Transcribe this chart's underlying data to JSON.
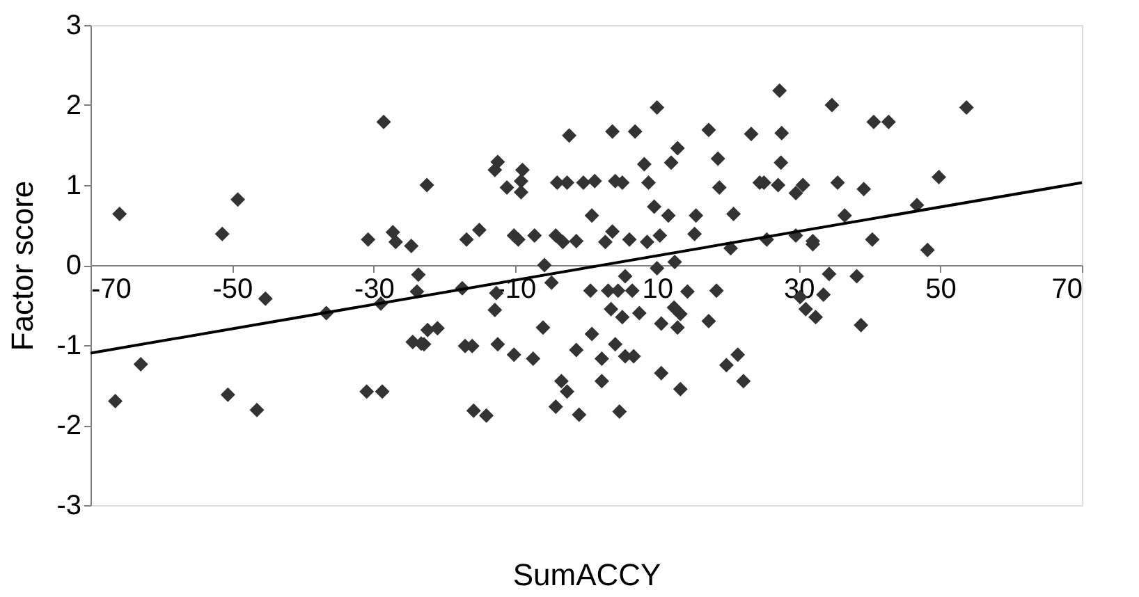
{
  "chart_data": {
    "type": "scatter",
    "xlabel": "SumACCY",
    "ylabel": "Factor score",
    "xlim": [
      -70,
      70
    ],
    "xticks": [
      -70,
      -50,
      -30,
      -10,
      10,
      30,
      50,
      70
    ],
    "ylim": [
      -3,
      3
    ],
    "yticks": [
      -3,
      -2,
      -1,
      0,
      1,
      2,
      3
    ],
    "grid": false,
    "series": [
      {
        "marker": "diamond",
        "color": "#333333",
        "x": [
          -65.9,
          -66.5,
          -62.9,
          -51.4,
          -49.2,
          -50.6,
          -46.5,
          -45.3,
          -36.7,
          -30.8,
          -28.6,
          -31.0,
          -28.8,
          -27.3,
          -26.9,
          -24.7,
          -23.7,
          -23.9,
          -29.0,
          -24.5,
          -22.9,
          -22.5,
          -22.4,
          -23.3,
          -21.0,
          -16.9,
          -15.1,
          -17.5,
          -17.1,
          -16.1,
          -15.9,
          -14.1,
          -12.5,
          -12.9,
          -12.7,
          -12.9,
          -12.5,
          -11.2,
          -10.2,
          -9.6,
          -9.0,
          -9.2,
          -9.2,
          -10.2,
          -7.3,
          -7.5,
          -5.9,
          -6.1,
          -4.9,
          -4.1,
          -4.3,
          -3.3,
          -2.4,
          -2.7,
          -3.5,
          -2.7,
          -4.3,
          -1.4,
          -1.4,
          -1.0,
          -0.4,
          1.2,
          0.8,
          0.6,
          0.8,
          2.2,
          2.2,
          2.7,
          3.7,
          3.1,
          3.7,
          4.1,
          5.1,
          3.5,
          4.5,
          5.5,
          5.1,
          4.1,
          4.7,
          5.5,
          6.1,
          6.5,
          6.9,
          7.5,
          6.7,
          8.8,
          8.2,
          8.6,
          9.6,
          10.0,
          10.4,
          10.0,
          11.6,
          12.0,
          12.9,
          10.6,
          12.4,
          13.3,
          12.5,
          14.3,
          12.9,
          10.6,
          13.3,
          15.3,
          15.5,
          17.3,
          18.6,
          18.8,
          20.4,
          20.8,
          18.4,
          17.3,
          19.8,
          21.4,
          22.2,
          23.3,
          24.5,
          27.3,
          27.6,
          27.5,
          25.1,
          27.1,
          29.6,
          30.6,
          25.5,
          29.6,
          32.0,
          32.0,
          34.3,
          33.5,
          30.2,
          31.0,
          32.4,
          34.7,
          35.5,
          36.5,
          38.2,
          38.8,
          39.2,
          40.4,
          40.6,
          42.7,
          46.7,
          48.2,
          49.8,
          53.7
        ],
        "values": [
          0.64,
          -1.7,
          -1.24,
          0.39,
          0.82,
          -1.62,
          -1.81,
          -0.42,
          -0.6,
          0.32,
          1.79,
          -1.58,
          -1.58,
          0.41,
          0.29,
          0.24,
          -0.12,
          -0.33,
          -0.48,
          -0.96,
          -0.99,
          1.0,
          -0.81,
          -0.98,
          -0.79,
          0.32,
          0.44,
          -0.29,
          -1.01,
          -1.01,
          -1.82,
          -1.88,
          1.29,
          1.19,
          -0.35,
          -0.56,
          -0.99,
          0.97,
          0.37,
          0.32,
          1.19,
          1.05,
          0.91,
          -1.12,
          0.37,
          -1.17,
          0.0,
          -0.78,
          -0.22,
          1.03,
          0.37,
          0.29,
          1.62,
          1.03,
          -1.45,
          -1.58,
          -1.77,
          0.3,
          -1.06,
          -1.87,
          1.03,
          1.05,
          0.62,
          -0.32,
          -0.86,
          -1.17,
          -1.45,
          0.29,
          0.42,
          -0.32,
          1.67,
          1.05,
          1.03,
          -0.55,
          -0.32,
          -0.14,
          -0.65,
          -0.99,
          -1.83,
          -1.14,
          0.32,
          -0.32,
          1.67,
          -0.6,
          -1.14,
          1.03,
          1.26,
          0.29,
          0.73,
          1.97,
          0.37,
          -0.04,
          0.62,
          1.28,
          1.46,
          -0.73,
          -0.53,
          -0.61,
          0.04,
          -0.33,
          -0.78,
          -1.35,
          -1.55,
          0.39,
          0.62,
          1.69,
          1.33,
          0.97,
          0.21,
          0.64,
          -0.32,
          -0.7,
          -1.25,
          -1.12,
          -1.45,
          1.64,
          1.03,
          2.18,
          1.65,
          1.28,
          1.03,
          1.0,
          0.9,
          1.0,
          0.32,
          0.37,
          0.3,
          0.26,
          -0.11,
          -0.37,
          -0.4,
          -0.55,
          -0.65,
          2.0,
          1.03,
          0.62,
          -0.14,
          -0.75,
          0.95,
          0.32,
          1.79,
          1.79,
          0.75,
          0.19,
          1.1,
          1.97
        ]
      },
      {
        "type": "line",
        "color": "#000000",
        "line_style": "solid",
        "x": [
          -70,
          70
        ],
        "values": [
          -1.1,
          1.03
        ]
      }
    ]
  }
}
